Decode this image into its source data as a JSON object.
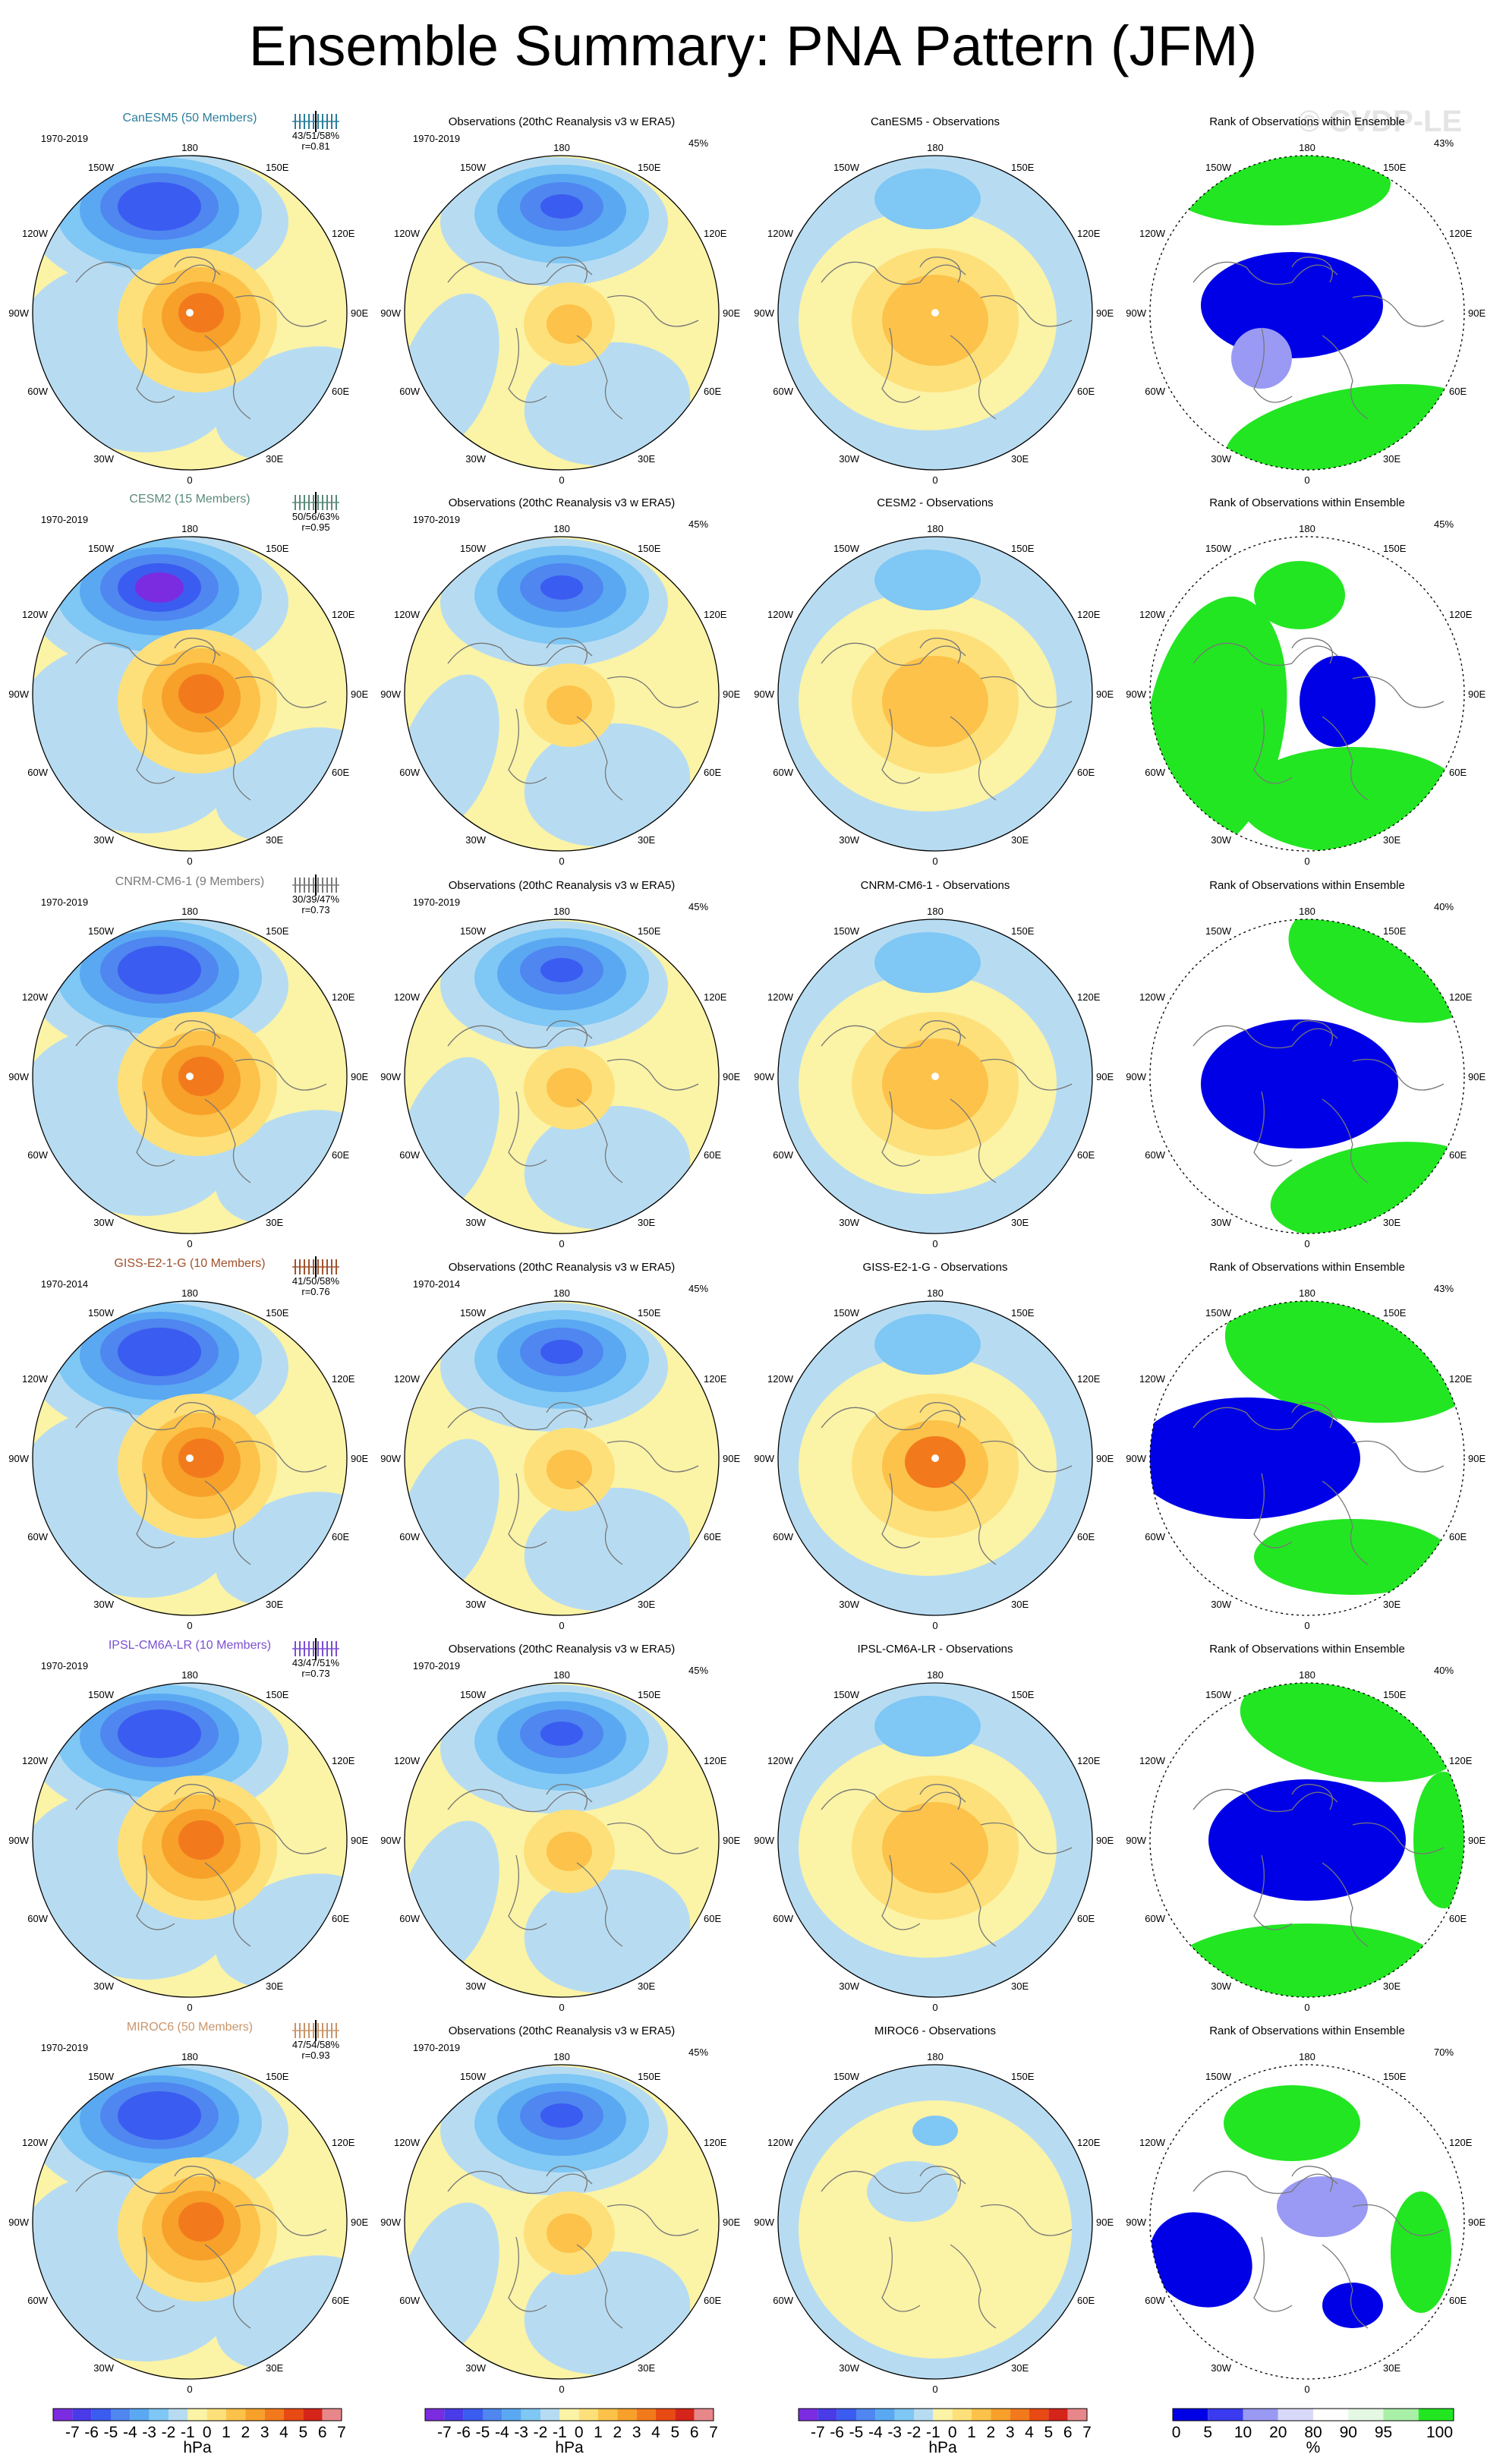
{
  "title": "Ensemble Summary: PNA Pattern (JFM)",
  "watermark": "© CVDP-LE",
  "lon_labels": {
    "top": "180",
    "bottom": "0",
    "left": "90W",
    "right": "90E",
    "ul1": "150W",
    "ul2": "120W",
    "ur1": "150E",
    "ur2": "120E",
    "ll1": "60W",
    "ll2": "30W",
    "lr1": "60E",
    "lr2": "30E"
  },
  "rows": [
    {
      "model": "CanESM5 (50 Members)",
      "model_color": "#2c7e9a",
      "period_model": "1970-2019",
      "stats": "43/51/58%",
      "r": "r=0.81",
      "obs_title": "Observations (20thC Reanalysis v3 w ERA5)",
      "period_obs": "1970-2019",
      "obs_pct": "45%",
      "diff_title": "CanESM5 - Observations",
      "rank_title": "Rank of Observations within Ensemble",
      "rank_pct": "43%",
      "pole_dot": true
    },
    {
      "model": "CESM2 (15 Members)",
      "model_color": "#5b8a7a",
      "period_model": "1970-2019",
      "stats": "50/56/63%",
      "r": "r=0.95",
      "obs_title": "Observations (20thC Reanalysis v3 w ERA5)",
      "period_obs": "1970-2019",
      "obs_pct": "45%",
      "diff_title": "CESM2 - Observations",
      "rank_title": "Rank of Observations within Ensemble",
      "rank_pct": "45%",
      "pole_dot": false
    },
    {
      "model": "CNRM-CM6-1 (9 Members)",
      "model_color": "#7a7a7a",
      "period_model": "1970-2019",
      "stats": "30/39/47%",
      "r": "r=0.73",
      "obs_title": "Observations (20thC Reanalysis v3 w ERA5)",
      "period_obs": "1970-2019",
      "obs_pct": "45%",
      "diff_title": "CNRM-CM6-1 - Observations",
      "rank_title": "Rank of Observations within Ensemble",
      "rank_pct": "40%",
      "pole_dot": true
    },
    {
      "model": "GISS-E2-1-G (10 Members)",
      "model_color": "#a0522d",
      "period_model": "1970-2014",
      "stats": "41/50/58%",
      "r": "r=0.76",
      "obs_title": "Observations (20thC Reanalysis v3 w ERA5)",
      "period_obs": "1970-2014",
      "obs_pct": "45%",
      "diff_title": "GISS-E2-1-G - Observations",
      "rank_title": "Rank of Observations within Ensemble",
      "rank_pct": "43%",
      "pole_dot": true
    },
    {
      "model": "IPSL-CM6A-LR (10 Members)",
      "model_color": "#7b4fd0",
      "period_model": "1970-2019",
      "stats": "43/47/51%",
      "r": "r=0.73",
      "obs_title": "Observations (20thC Reanalysis v3 w ERA5)",
      "period_obs": "1970-2019",
      "obs_pct": "45%",
      "diff_title": "IPSL-CM6A-LR - Observations",
      "rank_title": "Rank of Observations within Ensemble",
      "rank_pct": "40%",
      "pole_dot": false
    },
    {
      "model": "MIROC6 (50 Members)",
      "model_color": "#c8956a",
      "period_model": "1970-2019",
      "stats": "47/54/58%",
      "r": "r=0.93",
      "obs_title": "Observations (20thC Reanalysis v3 w ERA5)",
      "period_obs": "1970-2019",
      "obs_pct": "45%",
      "diff_title": "MIROC6 - Observations",
      "rank_title": "Rank of Observations within Ensemble",
      "rank_pct": "70%",
      "pole_dot": false
    }
  ],
  "colorbar_hpa": {
    "colors": [
      "#7b2ce0",
      "#4a3be8",
      "#3b5cf0",
      "#4f86f0",
      "#5aa8f2",
      "#7fc7f4",
      "#b7dcf2",
      "#fbf3a6",
      "#fde07a",
      "#fcc24a",
      "#f7a02a",
      "#f27a1c",
      "#e84a14",
      "#d5241a",
      "#e8878a"
    ],
    "ticks": [
      "-7",
      "-6",
      "-5",
      "-4",
      "-3",
      "-2",
      "-1",
      "0",
      "1",
      "2",
      "3",
      "4",
      "5",
      "6",
      "7"
    ],
    "unit": "hPa"
  },
  "colorbar_rank": {
    "colors": [
      "#0000e6",
      "#3a3af0",
      "#9a9af4",
      "#d8d8f8",
      "#ffffff",
      "#e4f8e4",
      "#a8f0a8",
      "#22e622"
    ],
    "ticks": [
      "0",
      "5",
      "10",
      "20",
      "80",
      "90",
      "95",
      "100"
    ],
    "unit": "%"
  }
}
